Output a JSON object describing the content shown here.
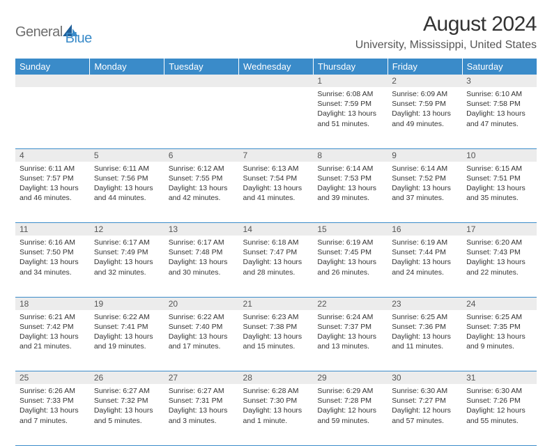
{
  "logo": {
    "part1": "General",
    "part2": "Blue"
  },
  "title": "August 2024",
  "location": "University, Mississippi, United States",
  "columns": [
    "Sunday",
    "Monday",
    "Tuesday",
    "Wednesday",
    "Thursday",
    "Friday",
    "Saturday"
  ],
  "colors": {
    "header_bg": "#3a8bc9",
    "header_text": "#ffffff",
    "daynum_bg": "#ececec",
    "border": "#3a8bc9",
    "logo_gray": "#6e6e6e",
    "logo_blue": "#3a8bc9"
  },
  "weeks": [
    {
      "nums": [
        "",
        "",
        "",
        "",
        "1",
        "2",
        "3"
      ],
      "cells": [
        null,
        null,
        null,
        null,
        {
          "sunrise": "Sunrise: 6:08 AM",
          "sunset": "Sunset: 7:59 PM",
          "daylight": "Daylight: 13 hours and 51 minutes."
        },
        {
          "sunrise": "Sunrise: 6:09 AM",
          "sunset": "Sunset: 7:59 PM",
          "daylight": "Daylight: 13 hours and 49 minutes."
        },
        {
          "sunrise": "Sunrise: 6:10 AM",
          "sunset": "Sunset: 7:58 PM",
          "daylight": "Daylight: 13 hours and 47 minutes."
        }
      ]
    },
    {
      "nums": [
        "4",
        "5",
        "6",
        "7",
        "8",
        "9",
        "10"
      ],
      "cells": [
        {
          "sunrise": "Sunrise: 6:11 AM",
          "sunset": "Sunset: 7:57 PM",
          "daylight": "Daylight: 13 hours and 46 minutes."
        },
        {
          "sunrise": "Sunrise: 6:11 AM",
          "sunset": "Sunset: 7:56 PM",
          "daylight": "Daylight: 13 hours and 44 minutes."
        },
        {
          "sunrise": "Sunrise: 6:12 AM",
          "sunset": "Sunset: 7:55 PM",
          "daylight": "Daylight: 13 hours and 42 minutes."
        },
        {
          "sunrise": "Sunrise: 6:13 AM",
          "sunset": "Sunset: 7:54 PM",
          "daylight": "Daylight: 13 hours and 41 minutes."
        },
        {
          "sunrise": "Sunrise: 6:14 AM",
          "sunset": "Sunset: 7:53 PM",
          "daylight": "Daylight: 13 hours and 39 minutes."
        },
        {
          "sunrise": "Sunrise: 6:14 AM",
          "sunset": "Sunset: 7:52 PM",
          "daylight": "Daylight: 13 hours and 37 minutes."
        },
        {
          "sunrise": "Sunrise: 6:15 AM",
          "sunset": "Sunset: 7:51 PM",
          "daylight": "Daylight: 13 hours and 35 minutes."
        }
      ]
    },
    {
      "nums": [
        "11",
        "12",
        "13",
        "14",
        "15",
        "16",
        "17"
      ],
      "cells": [
        {
          "sunrise": "Sunrise: 6:16 AM",
          "sunset": "Sunset: 7:50 PM",
          "daylight": "Daylight: 13 hours and 34 minutes."
        },
        {
          "sunrise": "Sunrise: 6:17 AM",
          "sunset": "Sunset: 7:49 PM",
          "daylight": "Daylight: 13 hours and 32 minutes."
        },
        {
          "sunrise": "Sunrise: 6:17 AM",
          "sunset": "Sunset: 7:48 PM",
          "daylight": "Daylight: 13 hours and 30 minutes."
        },
        {
          "sunrise": "Sunrise: 6:18 AM",
          "sunset": "Sunset: 7:47 PM",
          "daylight": "Daylight: 13 hours and 28 minutes."
        },
        {
          "sunrise": "Sunrise: 6:19 AM",
          "sunset": "Sunset: 7:45 PM",
          "daylight": "Daylight: 13 hours and 26 minutes."
        },
        {
          "sunrise": "Sunrise: 6:19 AM",
          "sunset": "Sunset: 7:44 PM",
          "daylight": "Daylight: 13 hours and 24 minutes."
        },
        {
          "sunrise": "Sunrise: 6:20 AM",
          "sunset": "Sunset: 7:43 PM",
          "daylight": "Daylight: 13 hours and 22 minutes."
        }
      ]
    },
    {
      "nums": [
        "18",
        "19",
        "20",
        "21",
        "22",
        "23",
        "24"
      ],
      "cells": [
        {
          "sunrise": "Sunrise: 6:21 AM",
          "sunset": "Sunset: 7:42 PM",
          "daylight": "Daylight: 13 hours and 21 minutes."
        },
        {
          "sunrise": "Sunrise: 6:22 AM",
          "sunset": "Sunset: 7:41 PM",
          "daylight": "Daylight: 13 hours and 19 minutes."
        },
        {
          "sunrise": "Sunrise: 6:22 AM",
          "sunset": "Sunset: 7:40 PM",
          "daylight": "Daylight: 13 hours and 17 minutes."
        },
        {
          "sunrise": "Sunrise: 6:23 AM",
          "sunset": "Sunset: 7:38 PM",
          "daylight": "Daylight: 13 hours and 15 minutes."
        },
        {
          "sunrise": "Sunrise: 6:24 AM",
          "sunset": "Sunset: 7:37 PM",
          "daylight": "Daylight: 13 hours and 13 minutes."
        },
        {
          "sunrise": "Sunrise: 6:25 AM",
          "sunset": "Sunset: 7:36 PM",
          "daylight": "Daylight: 13 hours and 11 minutes."
        },
        {
          "sunrise": "Sunrise: 6:25 AM",
          "sunset": "Sunset: 7:35 PM",
          "daylight": "Daylight: 13 hours and 9 minutes."
        }
      ]
    },
    {
      "nums": [
        "25",
        "26",
        "27",
        "28",
        "29",
        "30",
        "31"
      ],
      "cells": [
        {
          "sunrise": "Sunrise: 6:26 AM",
          "sunset": "Sunset: 7:33 PM",
          "daylight": "Daylight: 13 hours and 7 minutes."
        },
        {
          "sunrise": "Sunrise: 6:27 AM",
          "sunset": "Sunset: 7:32 PM",
          "daylight": "Daylight: 13 hours and 5 minutes."
        },
        {
          "sunrise": "Sunrise: 6:27 AM",
          "sunset": "Sunset: 7:31 PM",
          "daylight": "Daylight: 13 hours and 3 minutes."
        },
        {
          "sunrise": "Sunrise: 6:28 AM",
          "sunset": "Sunset: 7:30 PM",
          "daylight": "Daylight: 13 hours and 1 minute."
        },
        {
          "sunrise": "Sunrise: 6:29 AM",
          "sunset": "Sunset: 7:28 PM",
          "daylight": "Daylight: 12 hours and 59 minutes."
        },
        {
          "sunrise": "Sunrise: 6:30 AM",
          "sunset": "Sunset: 7:27 PM",
          "daylight": "Daylight: 12 hours and 57 minutes."
        },
        {
          "sunrise": "Sunrise: 6:30 AM",
          "sunset": "Sunset: 7:26 PM",
          "daylight": "Daylight: 12 hours and 55 minutes."
        }
      ]
    }
  ]
}
